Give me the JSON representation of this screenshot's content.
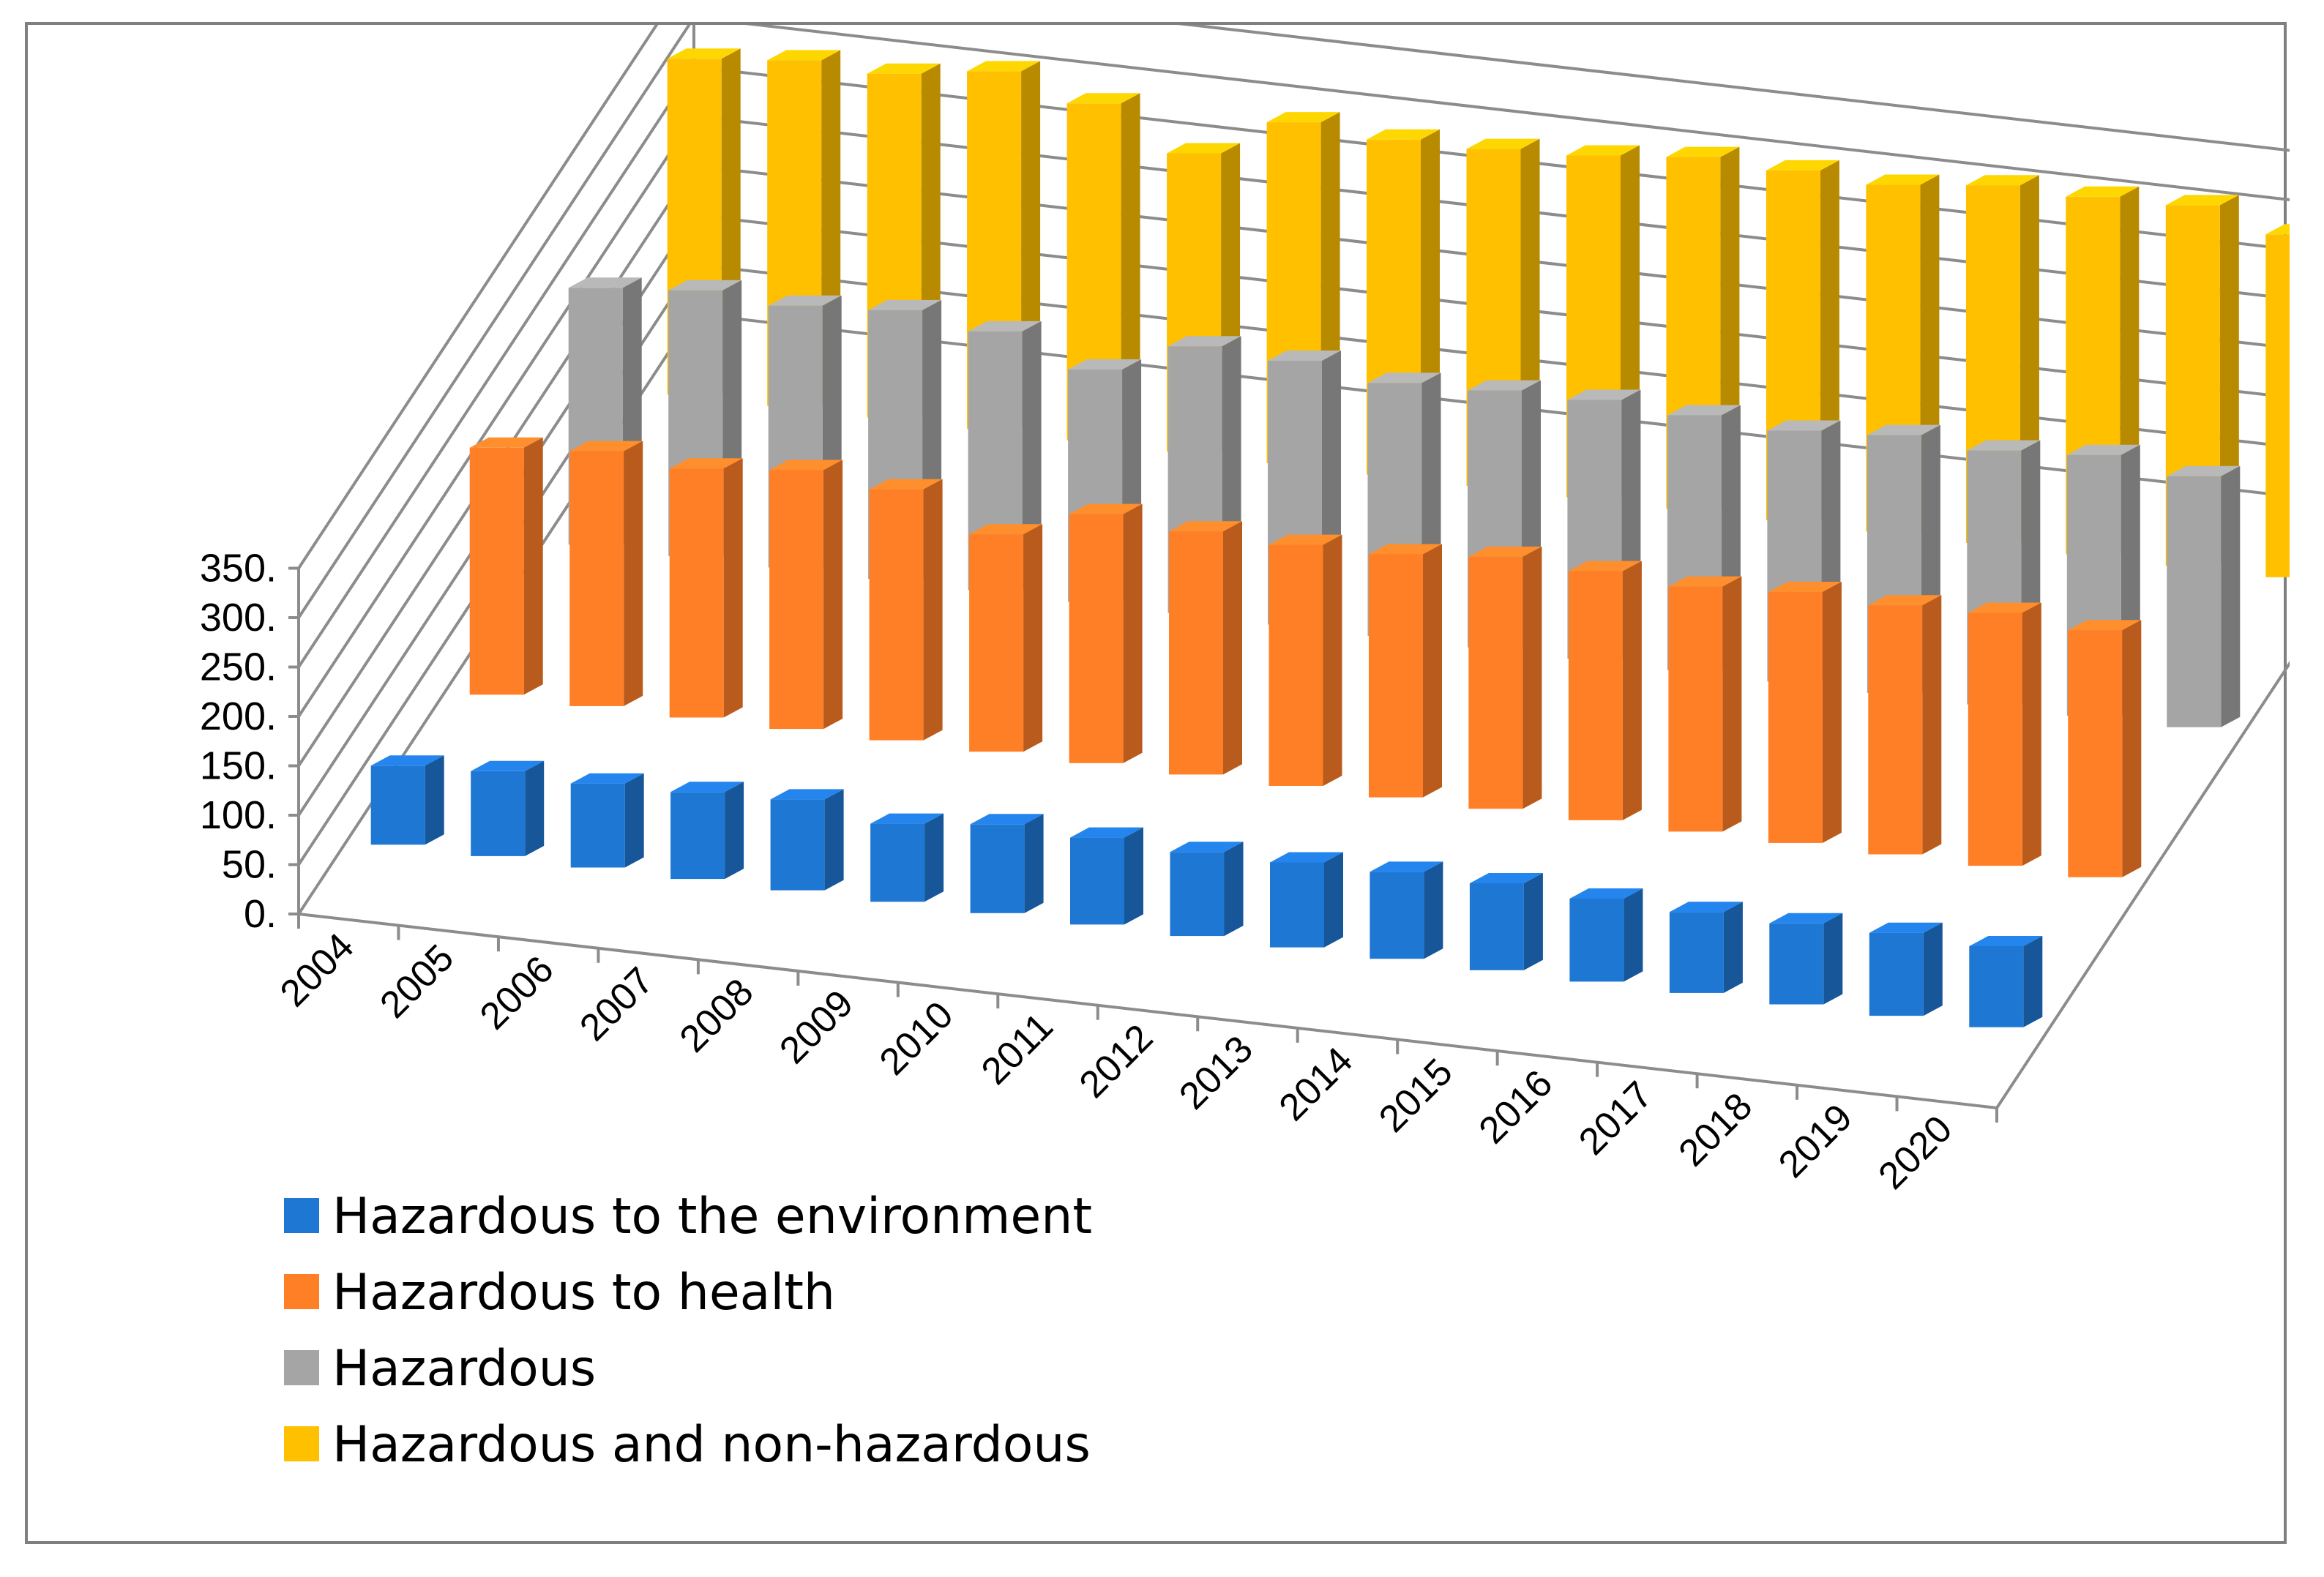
{
  "chart_data": {
    "type": "bar",
    "subtype": "3d-clustered",
    "title": "",
    "xlabel": "",
    "ylabel": "",
    "ylim": [
      0,
      350
    ],
    "yticks": [
      0,
      50,
      100,
      150,
      200,
      250,
      300,
      350
    ],
    "ytick_labels": [
      "0.",
      "50.",
      "100.",
      "150.",
      "200.",
      "250.",
      "300.",
      "350."
    ],
    "grid": true,
    "legend_position": "bottom-left",
    "categories": [
      "2004",
      "2005",
      "2006",
      "2007",
      "2008",
      "2009",
      "2010",
      "2011",
      "2012",
      "2013",
      "2014",
      "2015",
      "2016",
      "2017",
      "2018",
      "2019",
      "2020"
    ],
    "series": [
      {
        "name": "Hazardous to the environment",
        "color": "#1F77D4",
        "values": [
          80,
          86,
          85,
          88,
          92,
          79,
          90,
          88,
          85,
          86,
          88,
          88,
          84,
          82,
          82,
          84,
          82
        ]
      },
      {
        "name": "Hazardous to health",
        "color": "#FF7F27",
        "values": [
          250,
          258,
          252,
          262,
          254,
          220,
          252,
          246,
          244,
          246,
          255,
          252,
          248,
          254,
          252,
          256,
          250
        ]
      },
      {
        "name": "Hazardous",
        "color": "#A5A5A5",
        "values": [
          260,
          269,
          265,
          272,
          262,
          235,
          270,
          267,
          256,
          260,
          262,
          258,
          254,
          261,
          257,
          264,
          254
        ]
      },
      {
        "name": "Hazardous and non-hazardous",
        "color": "#FFC000",
        "values": [
          340,
          350,
          348,
          362,
          341,
          302,
          345,
          339,
          341,
          346,
          356,
          354,
          351,
          362,
          362,
          365,
          347
        ]
      }
    ]
  }
}
